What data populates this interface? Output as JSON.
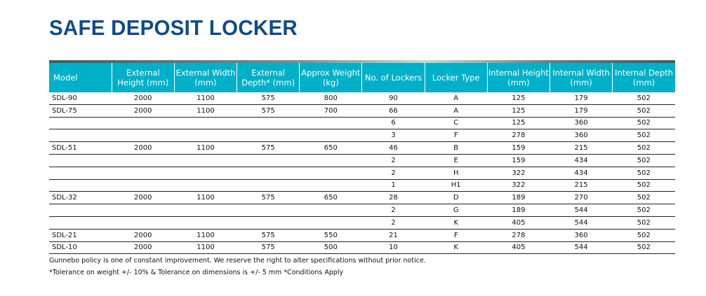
{
  "title": "SAFE DEPOSIT LOCKER",
  "headers": [
    "Model",
    "External Height (mm)",
    "External Width (mm)",
    "External Depth* (mm)",
    "Approx Weight (kg)",
    "No. of Lockers",
    "Locker Type",
    "Internal Height (mm)",
    "Internal Width (mm)",
    "Internal Depth (mm)"
  ],
  "rows": [
    [
      "SDL-90",
      "2000",
      "1100",
      "575",
      "800",
      "90",
      "A",
      "125",
      "179",
      "502"
    ],
    [
      "SDL-75",
      "2000",
      "1100",
      "575",
      "700",
      "66",
      "A",
      "125",
      "179",
      "502"
    ],
    [
      "",
      "",
      "",
      "",
      "",
      "6",
      "C",
      "125",
      "360",
      "502"
    ],
    [
      "",
      "",
      "",
      "",
      "",
      "3",
      "F",
      "278",
      "360",
      "502"
    ],
    [
      "SDL-51",
      "2000",
      "1100",
      "575",
      "650",
      "46",
      "B",
      "159",
      "215",
      "502"
    ],
    [
      "",
      "",
      "",
      "",
      "",
      "2",
      "E",
      "159",
      "434",
      "502"
    ],
    [
      "",
      "",
      "",
      "",
      "",
      "2",
      "H",
      "322",
      "434",
      "502"
    ],
    [
      "",
      "",
      "",
      "",
      "",
      "1",
      "H1",
      "322",
      "215",
      "502"
    ],
    [
      "SDL-32",
      "2000",
      "1100",
      "575",
      "650",
      "28",
      "D",
      "189",
      "270",
      "502"
    ],
    [
      "",
      "",
      "",
      "",
      "",
      "2",
      "G",
      "189",
      "544",
      "502"
    ],
    [
      "",
      "",
      "",
      "",
      "",
      "2",
      "K",
      "405",
      "544",
      "502"
    ],
    [
      "SDL-21",
      "2000",
      "1100",
      "575",
      "550",
      "21",
      "F",
      "278",
      "360",
      "502"
    ],
    [
      "SDL-10",
      "2000",
      "1100",
      "575",
      "500",
      "10",
      "K",
      "405",
      "544",
      "502"
    ]
  ],
  "footnotes": [
    "Gunnebo policy is one of constant improvement. We reserve the right to alter specifications without prior notice.",
    "*Tolerance on weight +/- 10% & Tolerance on dimensions is +/- 5 mm *Conditions Apply"
  ],
  "colors": {
    "title": "#0f4a8a",
    "header_bg": "#00b0c8"
  }
}
